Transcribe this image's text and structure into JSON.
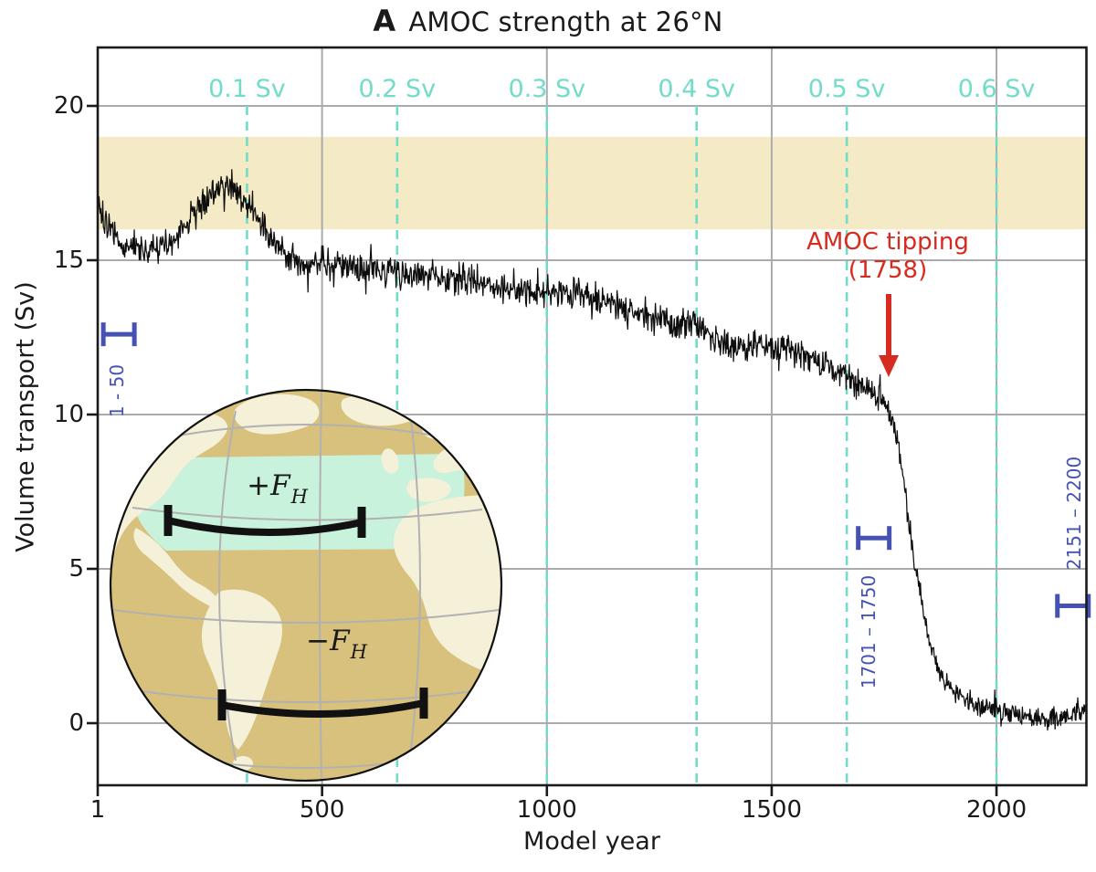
{
  "figure": {
    "panel_letter": "A",
    "title": "AMOC strength at 26°N"
  },
  "axes": {
    "x": {
      "label": "Model year",
      "tick_labels": [
        "1",
        "500",
        "1000",
        "1500",
        "2000"
      ],
      "tick_years": [
        1,
        500,
        1000,
        1500,
        2000
      ],
      "range": [
        1,
        2200
      ]
    },
    "y": {
      "label": "Volume transport (Sv)",
      "tick_labels": [
        "20",
        "15",
        "10",
        "5",
        "0"
      ],
      "tick_values": [
        20,
        15,
        10,
        5,
        0
      ],
      "range": [
        -2,
        22
      ]
    }
  },
  "colors": {
    "series": "#0d0d0d",
    "grid": "#ababab",
    "forcing_teal": "#72dcc8",
    "band_yellow": "#f4ebc6",
    "marker_blue": "#4552b4",
    "tipping_red": "#d62b1f",
    "globe_ocean": "#d8c17d",
    "globe_land": "#f5f0d8",
    "globe_band": "#c9f2dc",
    "globe_graticule": "#b1b1b1"
  },
  "forcing_lines": [
    {
      "year": 333,
      "label": "0.1 Sv"
    },
    {
      "year": 667,
      "label": "0.2 Sv"
    },
    {
      "year": 1000,
      "label": "0.3 Sv"
    },
    {
      "year": 1333,
      "label": "0.4 Sv"
    },
    {
      "year": 1667,
      "label": "0.5 Sv"
    },
    {
      "year": 2000,
      "label": "0.6 Sv"
    }
  ],
  "reference_band": {
    "from_sv": 16,
    "to_sv": 19
  },
  "tipping_annotation": {
    "line1": "AMOC tipping",
    "line2": "(1758)",
    "year": 1758
  },
  "period_markers": [
    {
      "label": "1 - 50",
      "year": 48,
      "sv": 12.6,
      "label_side": "below"
    },
    {
      "label": "1701 – 1750",
      "year": 1727,
      "sv": 6.0,
      "label_side": "below"
    },
    {
      "label": "2151 – 2200",
      "year": 2170,
      "sv": 3.8,
      "label_side": "above"
    }
  ],
  "inset_globe": {
    "plus_forcing": {
      "sign": "+",
      "symbol": "F",
      "subscript": "H"
    },
    "minus_forcing": {
      "sign": "−",
      "symbol": "F",
      "subscript": "H"
    }
  },
  "chart_data": {
    "type": "line",
    "series_name": "AMOC volume transport at 26°N",
    "xlabel": "Model year",
    "ylabel": "Volume transport (Sv)",
    "xlim": [
      1,
      2200
    ],
    "ylim": [
      -2,
      22
    ],
    "grid": true,
    "tipping_year": 1758,
    "reference_band_sv": [
      16,
      19
    ],
    "forcing_rate_labels_sv": [
      0.1,
      0.2,
      0.3,
      0.4,
      0.5,
      0.6
    ],
    "forcing_label_years": [
      333,
      667,
      1000,
      1333,
      1667,
      2000
    ],
    "anchors_year_sv": [
      [
        1,
        16.8
      ],
      [
        25,
        16.0
      ],
      [
        60,
        15.4
      ],
      [
        110,
        15.3
      ],
      [
        160,
        15.6
      ],
      [
        210,
        16.4
      ],
      [
        250,
        17.1
      ],
      [
        285,
        17.5
      ],
      [
        315,
        17.2
      ],
      [
        345,
        16.6
      ],
      [
        375,
        16.0
      ],
      [
        410,
        15.3
      ],
      [
        450,
        14.9
      ],
      [
        500,
        15.0
      ],
      [
        550,
        14.7
      ],
      [
        600,
        14.8
      ],
      [
        660,
        14.6
      ],
      [
        720,
        14.5
      ],
      [
        780,
        14.4
      ],
      [
        840,
        14.4
      ],
      [
        900,
        14.1
      ],
      [
        960,
        14.0
      ],
      [
        1020,
        14.0
      ],
      [
        1080,
        13.9
      ],
      [
        1140,
        13.6
      ],
      [
        1200,
        13.3
      ],
      [
        1260,
        13.0
      ],
      [
        1330,
        12.9
      ],
      [
        1380,
        12.4
      ],
      [
        1430,
        12.2
      ],
      [
        1480,
        12.3
      ],
      [
        1530,
        12.2
      ],
      [
        1580,
        11.8
      ],
      [
        1630,
        11.5
      ],
      [
        1680,
        11.1
      ],
      [
        1720,
        10.8
      ],
      [
        1758,
        10.3
      ],
      [
        1772,
        9.6
      ],
      [
        1786,
        8.7
      ],
      [
        1800,
        7.2
      ],
      [
        1812,
        5.8
      ],
      [
        1824,
        4.8
      ],
      [
        1838,
        3.6
      ],
      [
        1852,
        2.6
      ],
      [
        1868,
        1.8
      ],
      [
        1884,
        1.3
      ],
      [
        1900,
        1.05
      ],
      [
        1925,
        0.85
      ],
      [
        1955,
        0.6
      ],
      [
        1985,
        0.5
      ],
      [
        2015,
        0.4
      ],
      [
        2050,
        0.25
      ],
      [
        2090,
        0.12
      ],
      [
        2130,
        0.12
      ],
      [
        2170,
        0.3
      ],
      [
        2200,
        0.45
      ]
    ],
    "noise_amplitude_sv": [
      [
        1,
        0.52
      ],
      [
        1740,
        0.5
      ],
      [
        1760,
        0.42
      ],
      [
        1860,
        0.36
      ],
      [
        2200,
        0.33
      ]
    ],
    "description": "Noisy annual AMOC strength declining from ~17 Sv, tipping at model year 1758 and collapsing to ~0 Sv"
  }
}
